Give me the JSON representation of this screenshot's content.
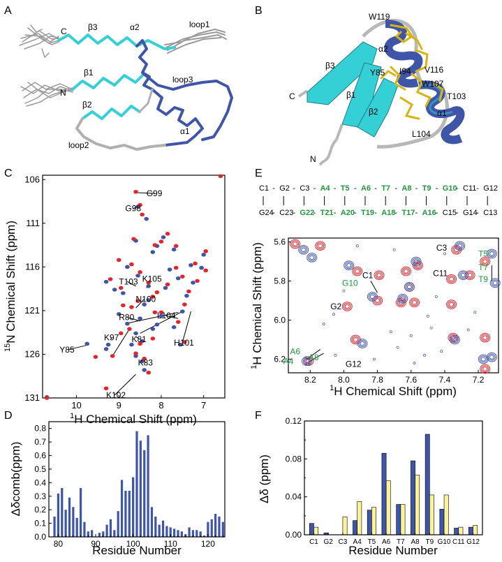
{
  "panel_labels": [
    "A",
    "B",
    "C",
    "D",
    "E",
    "F"
  ],
  "panel_a": {
    "labels": [
      "C",
      "N",
      "β3",
      "β1",
      "β2",
      "α2",
      "loop1",
      "loop3",
      "loop2",
      "α1"
    ]
  },
  "panel_b": {
    "labels": [
      "W119",
      "α2",
      "V116",
      "β3",
      "Y85",
      "I94",
      "W107",
      "T103",
      "β1",
      "β2",
      "α1",
      "L104",
      "C",
      "N"
    ]
  },
  "panel_c": {
    "xlabel_sup": "1",
    "xlabel": "H Chemical Shift (ppm)",
    "ylabel_sup": "15",
    "ylabel": "N Chemical Shift (ppm)",
    "x_ticks": [
      "10",
      "9",
      "8",
      "7"
    ],
    "y_ticks": [
      "106",
      "111",
      "116",
      "121",
      "126",
      "131"
    ],
    "annotations": [
      "G99",
      "G98",
      "T103",
      "K105",
      "N100",
      "R80",
      "L104",
      "Y85",
      "K97",
      "K81",
      "H101",
      "K83",
      "K102"
    ]
  },
  "panel_d": {
    "ylabel": "Δδcomb(ppm)",
    "xlabel": "Residue Number",
    "y_ticks": [
      "0.0",
      "0.1",
      "0.2",
      "0.3",
      "0.4",
      "0.5",
      "0.6",
      "0.7",
      "0.8"
    ],
    "x_ticks": [
      "80",
      "90",
      "100",
      "110",
      "120"
    ]
  },
  "panel_e": {
    "seq_top": [
      "C1",
      "G2",
      "C3",
      "A4",
      "T5",
      "A6",
      "T7",
      "A8",
      "T9",
      "G10",
      "C11",
      "G12"
    ],
    "seq_bottom": [
      "G24",
      "C23",
      "G22",
      "T21",
      "A20",
      "T19",
      "A18",
      "T17",
      "A16",
      "C15",
      "G14",
      "C13"
    ],
    "highlight_top": [
      3,
      4,
      5,
      6,
      7,
      8,
      9
    ],
    "highlight_bottom": [
      2,
      3,
      4,
      5,
      6,
      7,
      8
    ],
    "xlabel_sup": "1",
    "xlabel": "H Chemical Shift (ppm)",
    "ylabel_sup": "1",
    "ylabel": "H Chemical Shift (ppm)",
    "x_ticks": [
      "8.2",
      "8.0",
      "7.8",
      "7.6",
      "7.4",
      "7.2"
    ],
    "y_ticks": [
      "5.6",
      "5.8",
      "6.0",
      "6.2"
    ],
    "annotations": [
      "C3",
      "T5",
      "T7",
      "T9",
      "C11",
      "G10",
      "C1",
      "G2",
      "A6",
      "A4",
      "A8",
      "G12"
    ]
  },
  "panel_f": {
    "ylabel": "Δδ (ppm)",
    "xlabel": "Residue Number",
    "y_ticks": [
      "0.00",
      "0.04",
      "0.08",
      "0.12"
    ]
  },
  "colors": {
    "blue": "#3f55a8",
    "red": "#e3262d",
    "yellow": "#fbf29b",
    "cyan": "#35d0d6",
    "gold": "#d6b411",
    "green": "#1d9a3c",
    "grey": "#a9a9a9"
  },
  "chart_data": [
    {
      "panel": "C",
      "type": "scatter",
      "xlabel": "1H Chemical Shift (ppm)",
      "ylabel": "15N Chemical Shift (ppm)",
      "xlim": [
        10.8,
        6.5
      ],
      "ylim": [
        131,
        105.5
      ],
      "series": [
        {
          "color": "#3f55a8",
          "points": [
            [
              10.7,
              130.9
            ],
            [
              9.75,
              124.8
            ],
            [
              9.3,
              125.4
            ],
            [
              9.25,
              124.9
            ],
            [
              8.8,
              122.5
            ],
            [
              8.5,
              121.9
            ],
            [
              8.55,
              109.1
            ],
            [
              8.35,
              110.5
            ],
            [
              8.6,
              113.0
            ],
            [
              8.55,
              117.0
            ],
            [
              8.2,
              114.3
            ],
            [
              8.3,
              118.2
            ],
            [
              8.4,
              120.3
            ],
            [
              8.9,
              119.0
            ],
            [
              9.0,
              121.4
            ],
            [
              9.1,
              118.6
            ],
            [
              8.6,
              123.6
            ],
            [
              8.45,
              124.5
            ],
            [
              8.6,
              126.2
            ],
            [
              8.45,
              126.8
            ],
            [
              8.4,
              127.8
            ],
            [
              8.7,
              124.9
            ],
            [
              8.2,
              123.1
            ],
            [
              8.1,
              122.6
            ],
            [
              8.0,
              121.6
            ],
            [
              7.9,
              118.4
            ],
            [
              7.8,
              116.3
            ],
            [
              7.6,
              117.3
            ],
            [
              7.3,
              115.8
            ],
            [
              7.5,
              121.1
            ],
            [
              7.4,
              119.3
            ],
            [
              7.25,
              117.8
            ],
            [
              7.05,
              116.1
            ],
            [
              7.0,
              114.6
            ],
            [
              7.7,
              122.9
            ],
            [
              7.55,
              124.9
            ],
            [
              8.1,
              113.6
            ],
            [
              7.95,
              112.6
            ],
            [
              7.7,
              114.0
            ],
            [
              8.8,
              116.0
            ],
            [
              9.3,
              117.7
            ],
            [
              8.3,
              119.8
            ]
          ]
        },
        {
          "color": "#e3262d",
          "points": [
            [
              10.7,
              131.0
            ],
            [
              6.6,
              105.6
            ],
            [
              9.55,
              126.3
            ],
            [
              9.3,
              129.9
            ],
            [
              9.15,
              126.2
            ],
            [
              8.95,
              123.6
            ],
            [
              8.6,
              107.4
            ],
            [
              8.5,
              108.9
            ],
            [
              8.45,
              110.0
            ],
            [
              8.65,
              112.8
            ],
            [
              8.5,
              116.6
            ],
            [
              8.15,
              113.5
            ],
            [
              8.3,
              117.8
            ],
            [
              8.55,
              119.9
            ],
            [
              8.7,
              120.6
            ],
            [
              8.95,
              118.4
            ],
            [
              8.75,
              123.1
            ],
            [
              8.5,
              124.8
            ],
            [
              8.6,
              125.9
            ],
            [
              8.4,
              126.5
            ],
            [
              8.3,
              128.1
            ],
            [
              8.2,
              124.2
            ],
            [
              8.15,
              121.2
            ],
            [
              8.0,
              121.2
            ],
            [
              7.85,
              118.0
            ],
            [
              7.65,
              116.1
            ],
            [
              7.5,
              117.1
            ],
            [
              7.2,
              115.6
            ],
            [
              7.45,
              120.3
            ],
            [
              7.35,
              118.8
            ],
            [
              7.15,
              117.6
            ],
            [
              6.95,
              116.4
            ],
            [
              6.95,
              114.2
            ],
            [
              7.6,
              122.3
            ],
            [
              7.45,
              124.6
            ],
            [
              8.0,
              113.1
            ],
            [
              7.85,
              112.2
            ],
            [
              7.65,
              113.6
            ],
            [
              8.7,
              115.7
            ],
            [
              9.2,
              117.4
            ],
            [
              8.2,
              119.4
            ],
            [
              9.0,
              115.2
            ],
            [
              8.9,
              120.4
            ],
            [
              8.1,
              118.9
            ]
          ]
        }
      ]
    },
    {
      "panel": "D",
      "type": "bar",
      "xlabel": "Residue Number",
      "ylabel": "Δδcomb(ppm)",
      "ylim": [
        0,
        0.85
      ],
      "xlim": [
        77.5,
        124.5
      ],
      "x": [
        79,
        80,
        81,
        82,
        83,
        84,
        85,
        86,
        87,
        88,
        89,
        90,
        91,
        92,
        93,
        94,
        95,
        96,
        97,
        98,
        99,
        100,
        101,
        102,
        103,
        104,
        105,
        106,
        107,
        108,
        109,
        110,
        111,
        112,
        113,
        114,
        115,
        116,
        117,
        118,
        119,
        120,
        121,
        122,
        123,
        124
      ],
      "values": [
        0.15,
        0.32,
        0.36,
        0.2,
        0.29,
        0.22,
        0.14,
        0.36,
        0.11,
        0.04,
        0.05,
        0.0,
        0.03,
        0.04,
        0.09,
        0.13,
        0.05,
        0.19,
        0.42,
        0.34,
        0.34,
        0.44,
        0.78,
        0.71,
        0.64,
        0.75,
        0.22,
        0.15,
        0.09,
        0.12,
        0.08,
        0.07,
        0.06,
        0.05,
        0.04,
        0.02,
        0.07,
        0.05,
        0.05,
        0.04,
        0.01,
        0.11,
        0.13,
        0.17,
        0.15,
        0.11
      ]
    },
    {
      "panel": "F",
      "type": "bar",
      "xlabel": "Residue Number",
      "ylabel": "Δδ (ppm)",
      "ylim": [
        0,
        0.12
      ],
      "categories": [
        "C1",
        "G2",
        "C3",
        "A4",
        "T5",
        "A6",
        "T7",
        "A8",
        "T9",
        "G10",
        "C11",
        "G12"
      ],
      "series": [
        {
          "color": "#3f55a8",
          "values": [
            0.012,
            0.002,
            0.0,
            0.015,
            0.026,
            0.086,
            0.032,
            0.078,
            0.106,
            0.027,
            0.007,
            0.008
          ]
        },
        {
          "color": "#fbf29b",
          "values": [
            0.008,
            0.0,
            0.019,
            0.035,
            0.029,
            0.057,
            0.032,
            0.063,
            0.042,
            0.042,
            0.008,
            0.01
          ]
        }
      ]
    },
    {
      "panel": "E",
      "type": "scatter",
      "xlabel": "1H Chemical Shift (ppm)",
      "ylabel": "1H Chemical Shift (ppm)",
      "xlim": [
        8.33,
        7.08
      ],
      "ylim": [
        5.58,
        6.27
      ],
      "series": [
        {
          "color": "#e3262d",
          "points": [
            [
              8.29,
              5.61
            ],
            [
              8.14,
              5.62
            ],
            [
              7.92,
              5.75
            ],
            [
              7.79,
              5.77
            ],
            [
              7.63,
              5.75
            ],
            [
              7.56,
              5.72
            ],
            [
              7.61,
              5.83
            ],
            [
              7.58,
              5.91
            ],
            [
              7.66,
              5.91
            ],
            [
              7.36,
              5.79
            ],
            [
              7.33,
              5.64
            ],
            [
              7.25,
              5.77
            ],
            [
              7.36,
              5.92
            ],
            [
              7.16,
              5.7
            ],
            [
              7.16,
              6.09
            ],
            [
              7.16,
              6.25
            ],
            [
              7.35,
              6.09
            ],
            [
              7.93,
              6.1
            ],
            [
              7.8,
              5.9
            ],
            [
              7.98,
              5.93
            ],
            [
              8.21,
              6.21
            ]
          ]
        },
        {
          "color": "#3f55a8",
          "points": [
            [
              8.24,
              5.64
            ],
            [
              8.19,
              5.68
            ],
            [
              7.97,
              5.72
            ],
            [
              7.57,
              5.7
            ],
            [
              7.61,
              5.83
            ],
            [
              7.65,
              5.89
            ],
            [
              7.31,
              5.62
            ],
            [
              7.29,
              5.77
            ],
            [
              7.12,
              5.66
            ],
            [
              7.1,
              5.81
            ],
            [
              7.12,
              6.19
            ],
            [
              7.17,
              6.2
            ],
            [
              7.34,
              6.1
            ],
            [
              7.89,
              6.12
            ],
            [
              8.22,
              6.21
            ],
            [
              7.83,
              5.88
            ]
          ]
        }
      ]
    }
  ]
}
